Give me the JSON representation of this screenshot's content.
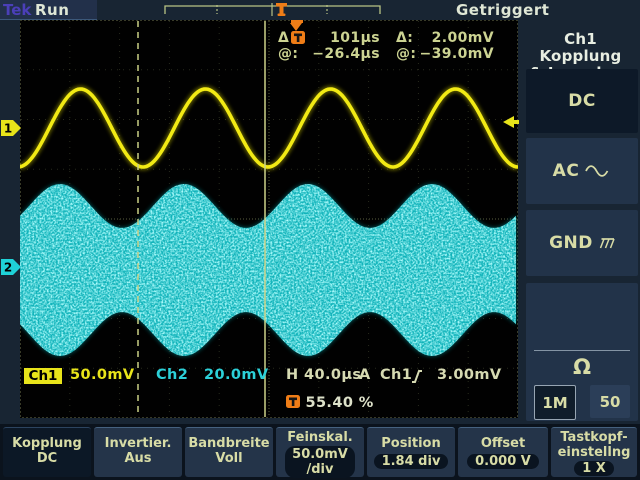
{
  "topbar": {
    "brand": "Tek",
    "run_status": "Run",
    "trigger_status": "Getriggert"
  },
  "cursors": {
    "time_delta_label": "Δ",
    "time_delta_value": "101µs",
    "time_at_label": "@:",
    "time_at_value": "−26.4µs",
    "volt_delta_label": "Δ:",
    "volt_delta_value": "2.00mV",
    "volt_at_label": "@:",
    "volt_at_value": "−39.0mV"
  },
  "side_menu": {
    "title_line1": "Ch1 Kopplung",
    "title_line2": "& Impedanz",
    "dc_label": "DC",
    "ac_label": "AC",
    "gnd_label": "GND",
    "impedance_symbol": "Ω",
    "impedance_1m": "1M",
    "impedance_50": "50"
  },
  "readouts": {
    "ch1_label": "Ch1",
    "ch1_scale": "50.0mV",
    "ch2_label": "Ch2",
    "ch2_scale": "20.0mV",
    "horizontal": "H 40.0µs",
    "trigger_mode": "A",
    "trigger_source": "Ch1",
    "trigger_level": "3.00mV",
    "trigger_position": "55.40 %"
  },
  "channel_markers": {
    "ch1": "1",
    "ch2": "2"
  },
  "bottom_menu": {
    "b1_line1": "Kopplung",
    "b1_line2": "DC",
    "b2_line1": "Invertier.",
    "b2_line2": "Aus",
    "b3_line1": "Bandbreite",
    "b3_line2": "Voll",
    "b4_label": "Feinskal.",
    "b4_value1": "50.0mV",
    "b4_value2": "/div",
    "b5_label": "Position",
    "b5_value": "1.84 div",
    "b6_label": "Offset",
    "b6_value": "0.000 V",
    "b7_line1": "Tastkopf-",
    "b7_line2": "einstellng",
    "b7_value": "1 X"
  },
  "icons": {
    "trigger-t-icon": "orange square with black T",
    "trigger-arrow-icon": "orange down arrow (trigger position)",
    "slope-rising-icon": "rising edge slope",
    "ac-sine-icon": "sine wave",
    "gnd-ground-icon": "chassis ground",
    "trigger-level-arrow-icon": "yellow left arrow"
  },
  "colors": {
    "ch1_yellow": "#f2ea14",
    "ch2_cyan": "#1fd2d8",
    "trigger_orange": "#ef7d17",
    "readout_text": "#ccd392",
    "menu_text": "#d8dca6",
    "screen_bg": "#182533",
    "graticule_bg": "#010101"
  }
}
